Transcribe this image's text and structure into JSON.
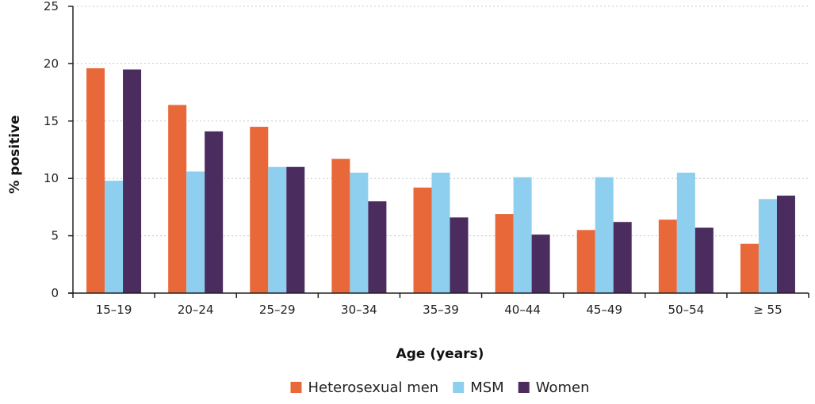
{
  "chart_data": {
    "type": "bar",
    "title": "",
    "xlabel": "Age (years)",
    "ylabel": "% positive",
    "ylim": [
      0,
      25
    ],
    "yticks": [
      0,
      5,
      10,
      15,
      20,
      25
    ],
    "grid": true,
    "legend_position": "bottom",
    "categories": [
      "15–19",
      "20–24",
      "25–29",
      "30–34",
      "35–39",
      "40–44",
      "45–49",
      "50–54",
      "≥ 55"
    ],
    "series": [
      {
        "name": "Heterosexual men",
        "color": "#E8683A",
        "values": [
          19.6,
          16.4,
          14.5,
          11.7,
          9.2,
          6.9,
          5.5,
          6.4,
          4.3
        ]
      },
      {
        "name": "MSM",
        "color": "#8ECFEF",
        "values": [
          9.8,
          10.6,
          11.0,
          10.5,
          10.5,
          10.1,
          10.1,
          10.5,
          8.2
        ]
      },
      {
        "name": "Women",
        "color": "#4A2C5E",
        "values": [
          19.5,
          14.1,
          11.0,
          8.0,
          6.6,
          5.1,
          6.2,
          5.7,
          8.5
        ]
      }
    ]
  }
}
